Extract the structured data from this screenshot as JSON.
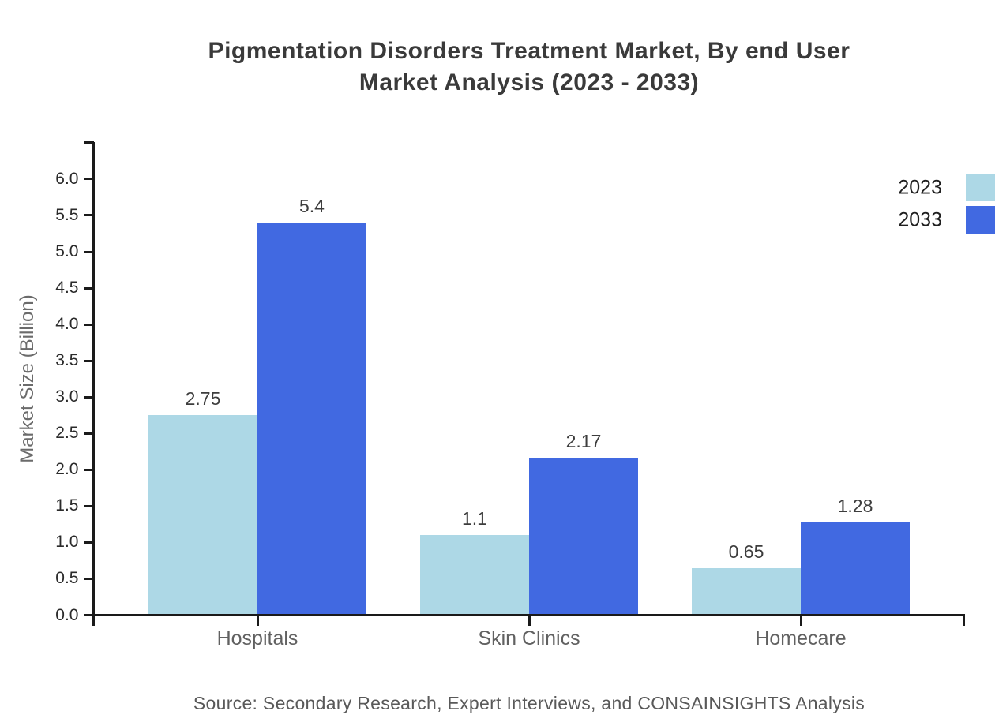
{
  "title": {
    "line1": "Pigmentation Disorders Treatment Market, By end User",
    "line2": "Market Analysis (2023 - 2033)"
  },
  "source": "Source: Secondary Research, Expert Interviews, and CONSAINSIGHTS Analysis",
  "chart_data": {
    "type": "bar",
    "title": "Pigmentation Disorders Treatment Market, By end User Market Analysis (2023 - 2033)",
    "categories": [
      "Hospitals",
      "Skin Clinics",
      "Homecare"
    ],
    "series": [
      {
        "name": "2023",
        "color": "#add8e6",
        "values": [
          2.75,
          1.1,
          0.65
        ]
      },
      {
        "name": "2033",
        "color": "#4169e1",
        "values": [
          5.4,
          2.17,
          1.28
        ]
      }
    ],
    "xlabel": "",
    "ylabel": "Market Size (Billion)",
    "ylim": [
      0,
      6.5
    ],
    "yticks": [
      0,
      0.5,
      1,
      1.5,
      2,
      2.5,
      3,
      3.5,
      4,
      4.5,
      5,
      5.5,
      6
    ],
    "grid": false,
    "legend_position": "top-right"
  }
}
